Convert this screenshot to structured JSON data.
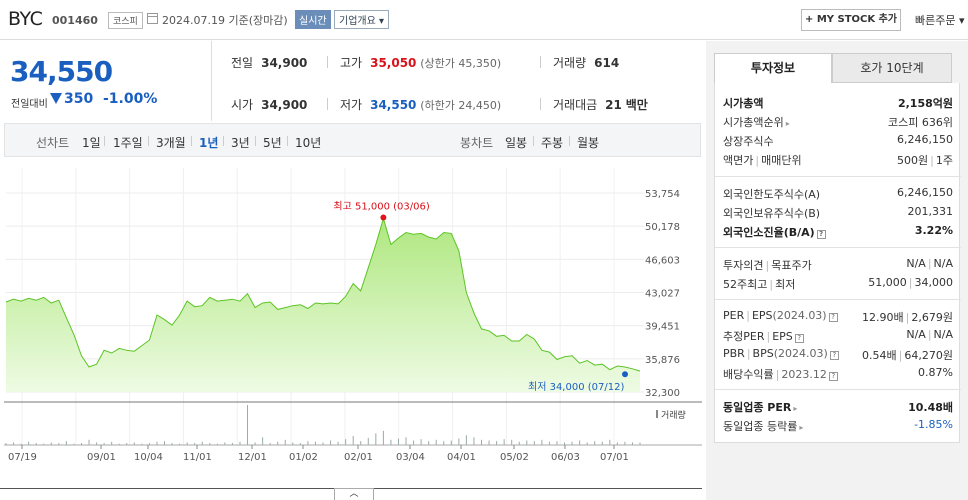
{
  "header": {
    "company_name": "BYC",
    "stock_code": "001460",
    "market": "코스피",
    "date_text": "2024.07.19 기준(장마감)",
    "realtime_label": "실시간",
    "company_info_label": "기업개요 ▾",
    "mystock_label": "+ MY STOCK 추가",
    "quick_order_label": "빠른주문 ▾"
  },
  "price": {
    "current": "34,550",
    "change_label": "전일대비",
    "change": "350",
    "change_pct": "-1.00%"
  },
  "stats": {
    "prev_close_label": "전일",
    "prev_close": "34,900",
    "high_label": "고가",
    "high": "35,050",
    "upper_limit": "(상한가 45,350)",
    "volume_label": "거래량",
    "volume": "614",
    "open_label": "시가",
    "open": "34,900",
    "low_label": "저가",
    "low": "34,550",
    "lower_limit": "(하한가 24,450)",
    "trade_value_label": "거래대금",
    "trade_value": "21",
    "trade_value_unit": "백만"
  },
  "periods": {
    "line_label": "선차트",
    "line_items": [
      "1일",
      "1주일",
      "3개월",
      "1년",
      "3년",
      "5년",
      "10년"
    ],
    "selected": "1년",
    "candle_label": "봉차트",
    "candle_items": [
      "일봉",
      "주봉",
      "월봉"
    ]
  },
  "chart_data": {
    "type": "area",
    "y_ticks": [
      "53,754",
      "50,178",
      "46,603",
      "43,027",
      "39,451",
      "35,876",
      "32,300"
    ],
    "ylim": [
      32300,
      53754
    ],
    "x_ticks": [
      "07/19",
      "09/01",
      "10/04",
      "11/01",
      "12/01",
      "01/02",
      "02/01",
      "03/04",
      "04/01",
      "05/02",
      "06/03",
      "07/01"
    ],
    "grid": true,
    "legend": "none",
    "series": [
      {
        "values": [
          42000,
          42300,
          42100,
          42400,
          42200,
          42500,
          41900,
          42200,
          40300,
          38500,
          36200,
          35000,
          35300,
          36800,
          36500,
          37000,
          36800,
          36700,
          37300,
          37900,
          40600,
          40100,
          39500,
          40600,
          42100,
          41500,
          41600,
          42500,
          42100,
          42200,
          42300,
          42100,
          42900,
          41400,
          41900,
          42000,
          41200,
          41400,
          41600,
          41700,
          41300,
          41900,
          41800,
          41900,
          41800,
          42600,
          44000,
          43200,
          45700,
          48200,
          51000,
          48200,
          48900,
          49500,
          49300,
          49400,
          49000,
          48800,
          49500,
          49400,
          47500,
          43000,
          40800,
          39100,
          38900,
          38300,
          38400,
          37800,
          37800,
          38500,
          38000,
          36800,
          36600,
          35800,
          36100,
          36200,
          35400,
          35700,
          35200,
          35300,
          34700,
          35100,
          35000,
          34800,
          34550
        ]
      }
    ],
    "annotations": {
      "high_text": "최고 51,000 (03/06)",
      "low_text": "최저 34,000 (07/12)",
      "high_value": 51000,
      "low_value": 34000
    },
    "volume_label": "거래량",
    "volume_values": [
      3,
      4,
      2,
      5,
      3,
      2,
      4,
      3,
      6,
      2,
      3,
      8,
      4,
      3,
      5,
      2,
      3,
      4,
      2,
      3,
      5,
      6,
      3,
      2,
      4,
      3,
      5,
      3,
      2,
      4,
      3,
      5,
      62,
      4,
      12,
      3,
      5,
      8,
      4,
      3,
      6,
      5,
      4,
      7,
      5,
      9,
      14,
      6,
      11,
      18,
      22,
      8,
      10,
      12,
      7,
      9,
      6,
      8,
      6,
      7,
      10,
      15,
      12,
      8,
      7,
      6,
      9,
      8,
      5,
      7,
      6,
      8,
      5,
      6,
      4,
      5,
      7,
      4,
      6,
      5,
      8,
      4,
      5,
      4,
      4
    ]
  },
  "panel": {
    "tab_active": "투자정보",
    "tab_other": "호가 10단계",
    "g1": {
      "market_cap_label": "시가총액",
      "market_cap": "2,158억원",
      "market_cap_rank_label": "시가총액순위",
      "market_cap_rank": "코스피 636위",
      "listed_shares_label": "상장주식수",
      "listed_shares": "6,246,150",
      "face_value_label": "액면가",
      "trade_unit_label": "매매단위",
      "face_value": "500원",
      "trade_unit": "1주"
    },
    "g2": {
      "foreign_limit_label": "외국인한도주식수(A)",
      "foreign_limit": "6,246,150",
      "foreign_hold_label": "외국인보유주식수(B)",
      "foreign_hold": "201,331",
      "foreign_ratio_label": "외국인소진율(B/A)",
      "foreign_ratio": "3.22%"
    },
    "g3": {
      "opinion_label": "투자의견",
      "target_label": "목표주가",
      "opinion": "N/A",
      "target": "N/A",
      "w52_high_label": "52주최고",
      "w52_low_label": "최저",
      "w52_high": "51,000",
      "w52_low": "34,000"
    },
    "g4": {
      "per_label": "PER",
      "eps_label": "EPS",
      "eps_period": "(2024.03)",
      "per": "12.90배",
      "eps": "2,679원",
      "est_per_label": "추정PER",
      "est_eps_label": "EPS",
      "est_per": "N/A",
      "est_eps": "N/A",
      "pbr_label": "PBR",
      "bps_label": "BPS",
      "bps_period": "(2024.03)",
      "pbr": "0.54배",
      "bps": "64,270원",
      "dividend_label": "배당수익률",
      "dividend_period": "2023.12",
      "dividend": "0.87%"
    },
    "g5": {
      "sector_per_label": "동일업종 PER",
      "sector_per": "10.48배",
      "sector_change_label": "동일업종 등락률",
      "sector_change": "-1.85%"
    }
  },
  "colors": {
    "accent_blue": "#1a5fc0",
    "up_red": "#d8121a",
    "area_fill": "#aee77e",
    "area_line": "#5bc424"
  }
}
